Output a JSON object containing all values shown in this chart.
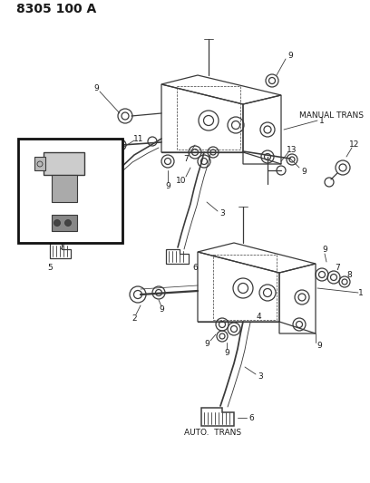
{
  "title": "8305 100 A",
  "bg_color": "#ffffff",
  "line_color": "#3a3a3a",
  "text_color": "#1a1a1a",
  "label_fontsize": 6.5,
  "title_fontsize": 10,
  "manual_trans_label": "MANUAL TRANS",
  "auto_trans_label": "AUTO.  TRANS"
}
